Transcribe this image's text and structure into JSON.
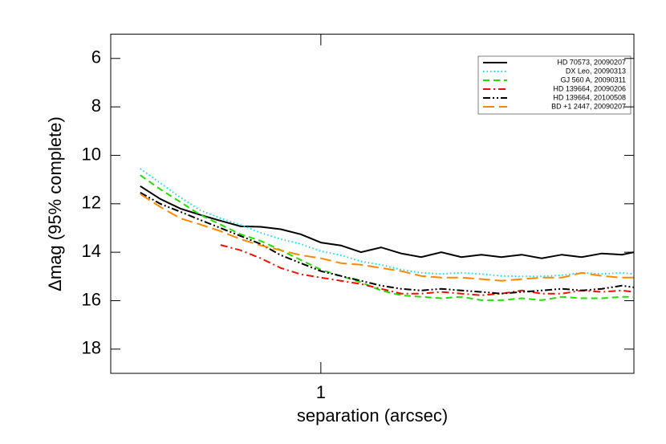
{
  "chart_data": {
    "type": "line",
    "xlabel": "separation (arcsec)",
    "ylabel": "Δmag (95% complete)",
    "xscale": "log",
    "xlim": [
      0.285,
      6.49
    ],
    "ylim": [
      19,
      5
    ],
    "xticks": [
      1
    ],
    "yticks": [
      6,
      8,
      10,
      12,
      14,
      16,
      18
    ],
    "legend": "upper right",
    "x": [
      0.34,
      0.383,
      0.432,
      0.487,
      0.549,
      0.619,
      0.698,
      0.787,
      0.887,
      1,
      1.127,
      1.271,
      1.433,
      1.616,
      1.821,
      2.054,
      2.315,
      2.61,
      2.94,
      3.32,
      3.74,
      4.22,
      4.75,
      5.36,
      6.04,
      6.49
    ],
    "series": [
      {
        "name": "HD 70573, 20090207",
        "color": "#000000",
        "style": "solid",
        "values": [
          11.27,
          11.8,
          12.2,
          12.46,
          12.7,
          12.93,
          12.95,
          13.05,
          13.26,
          13.6,
          13.72,
          14.0,
          13.8,
          14.05,
          14.2,
          14.0,
          14.2,
          14.1,
          14.2,
          14.1,
          14.25,
          14.1,
          14.2,
          14.05,
          14.1,
          14.0
        ]
      },
      {
        "name": "DX Leo, 20090313",
        "color": "#00e5ee",
        "style": "dotted",
        "values": [
          10.55,
          11.14,
          11.74,
          12.27,
          12.6,
          12.87,
          13.2,
          13.46,
          13.66,
          13.96,
          14.12,
          14.38,
          14.52,
          14.72,
          14.85,
          14.9,
          14.85,
          14.9,
          14.98,
          15.0,
          15.0,
          14.95,
          14.85,
          14.9,
          14.85,
          14.9
        ]
      },
      {
        "name": "GJ 560 A, 20090311",
        "color": "#22dd00",
        "style": "dashed",
        "values": [
          10.82,
          11.4,
          11.93,
          12.46,
          12.86,
          13.26,
          13.53,
          13.92,
          14.32,
          14.72,
          14.98,
          15.24,
          15.58,
          15.78,
          15.84,
          15.9,
          15.84,
          15.98,
          15.98,
          15.9,
          15.98,
          15.84,
          15.9,
          15.9,
          15.84,
          15.84
        ]
      },
      {
        "name": "HD 139664, 20090206",
        "color": "#ee1100",
        "style": "dashdot",
        "values": [
          null,
          null,
          null,
          null,
          13.7,
          13.92,
          14.25,
          14.65,
          14.91,
          15.05,
          15.18,
          15.31,
          15.51,
          15.71,
          15.71,
          15.64,
          15.71,
          15.78,
          15.71,
          15.58,
          15.71,
          15.71,
          15.58,
          15.64,
          15.58,
          15.64
        ]
      },
      {
        "name": "HD 139664, 20100508",
        "color": "#000000",
        "style": "dashdotdot",
        "values": [
          11.54,
          12.0,
          12.33,
          12.67,
          13.0,
          13.33,
          13.66,
          14.12,
          14.45,
          14.78,
          14.98,
          15.18,
          15.38,
          15.51,
          15.58,
          15.51,
          15.58,
          15.64,
          15.71,
          15.64,
          15.58,
          15.51,
          15.58,
          15.51,
          15.38,
          15.45
        ]
      },
      {
        "name": "BD +1 2447, 20090207",
        "color": "#ff8800",
        "style": "longdash",
        "values": [
          11.6,
          12.13,
          12.6,
          12.86,
          13.13,
          13.46,
          13.72,
          13.92,
          14.12,
          14.25,
          14.45,
          14.52,
          14.65,
          14.78,
          14.98,
          15.05,
          15.05,
          15.11,
          15.18,
          15.11,
          15.05,
          15.05,
          14.85,
          14.98,
          15.05,
          15.05
        ]
      }
    ]
  }
}
